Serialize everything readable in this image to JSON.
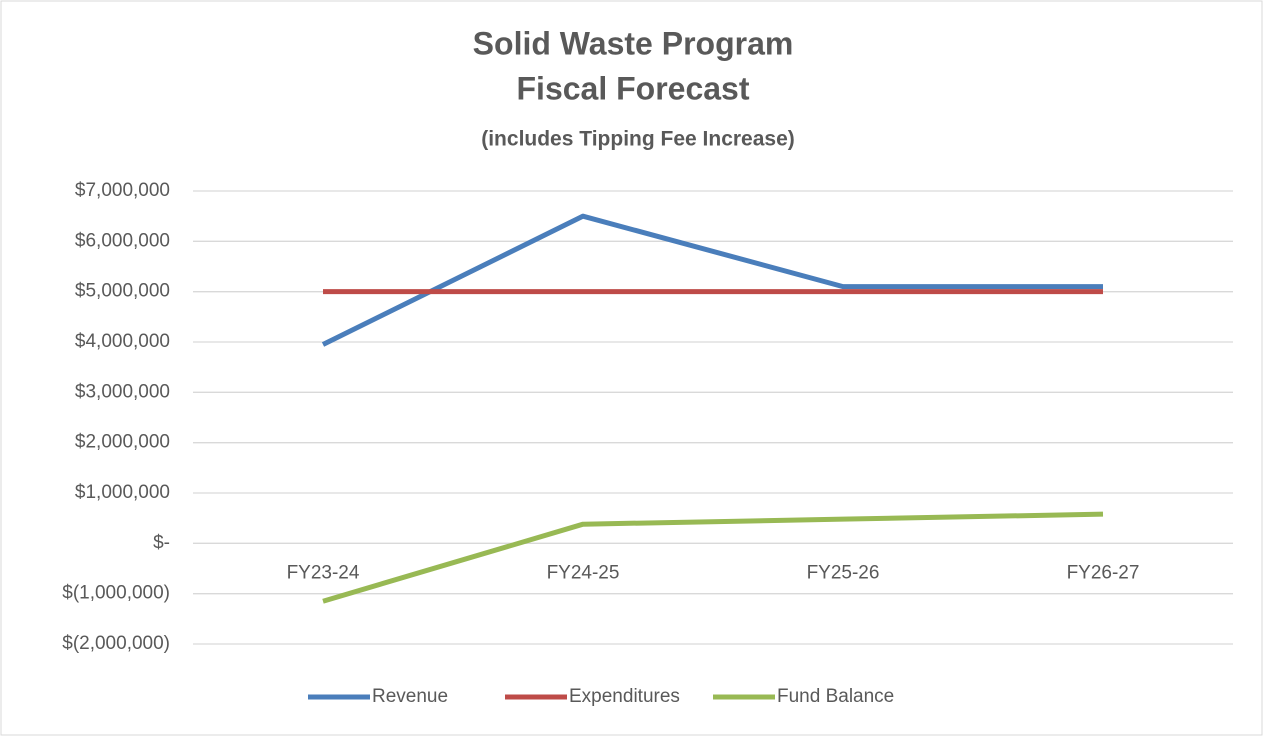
{
  "chart_data": {
    "type": "line",
    "title": [
      "Solid Waste Program",
      "Fiscal Forecast"
    ],
    "subtitle": "(includes Tipping Fee Increase)",
    "categories": [
      "FY23-24",
      "FY24-25",
      "FY25-26",
      "FY26-27"
    ],
    "series": [
      {
        "name": "Revenue",
        "color": "#4a7ebb",
        "values": [
          3950000,
          6500000,
          5100000,
          5100000
        ]
      },
      {
        "name": "Expenditures",
        "color": "#be4b48",
        "values": [
          5000000,
          5000000,
          5000000,
          5000000
        ]
      },
      {
        "name": "Fund Balance",
        "color": "#98b954",
        "values": [
          -1150000,
          380000,
          480000,
          580000
        ]
      }
    ],
    "ylim": [
      -2000000,
      7000000
    ],
    "yticks": [
      {
        "value": -2000000,
        "label": "$(2,000,000)"
      },
      {
        "value": -1000000,
        "label": "$(1,000,000)"
      },
      {
        "value": 0,
        "label": "$-"
      },
      {
        "value": 1000000,
        "label": "$1,000,000"
      },
      {
        "value": 2000000,
        "label": "$2,000,000"
      },
      {
        "value": 3000000,
        "label": "$3,000,000"
      },
      {
        "value": 4000000,
        "label": "$4,000,000"
      },
      {
        "value": 5000000,
        "label": "$5,000,000"
      },
      {
        "value": 6000000,
        "label": "$6,000,000"
      },
      {
        "value": 7000000,
        "label": "$7,000,000"
      }
    ],
    "grid": true,
    "legend": "bottom"
  }
}
